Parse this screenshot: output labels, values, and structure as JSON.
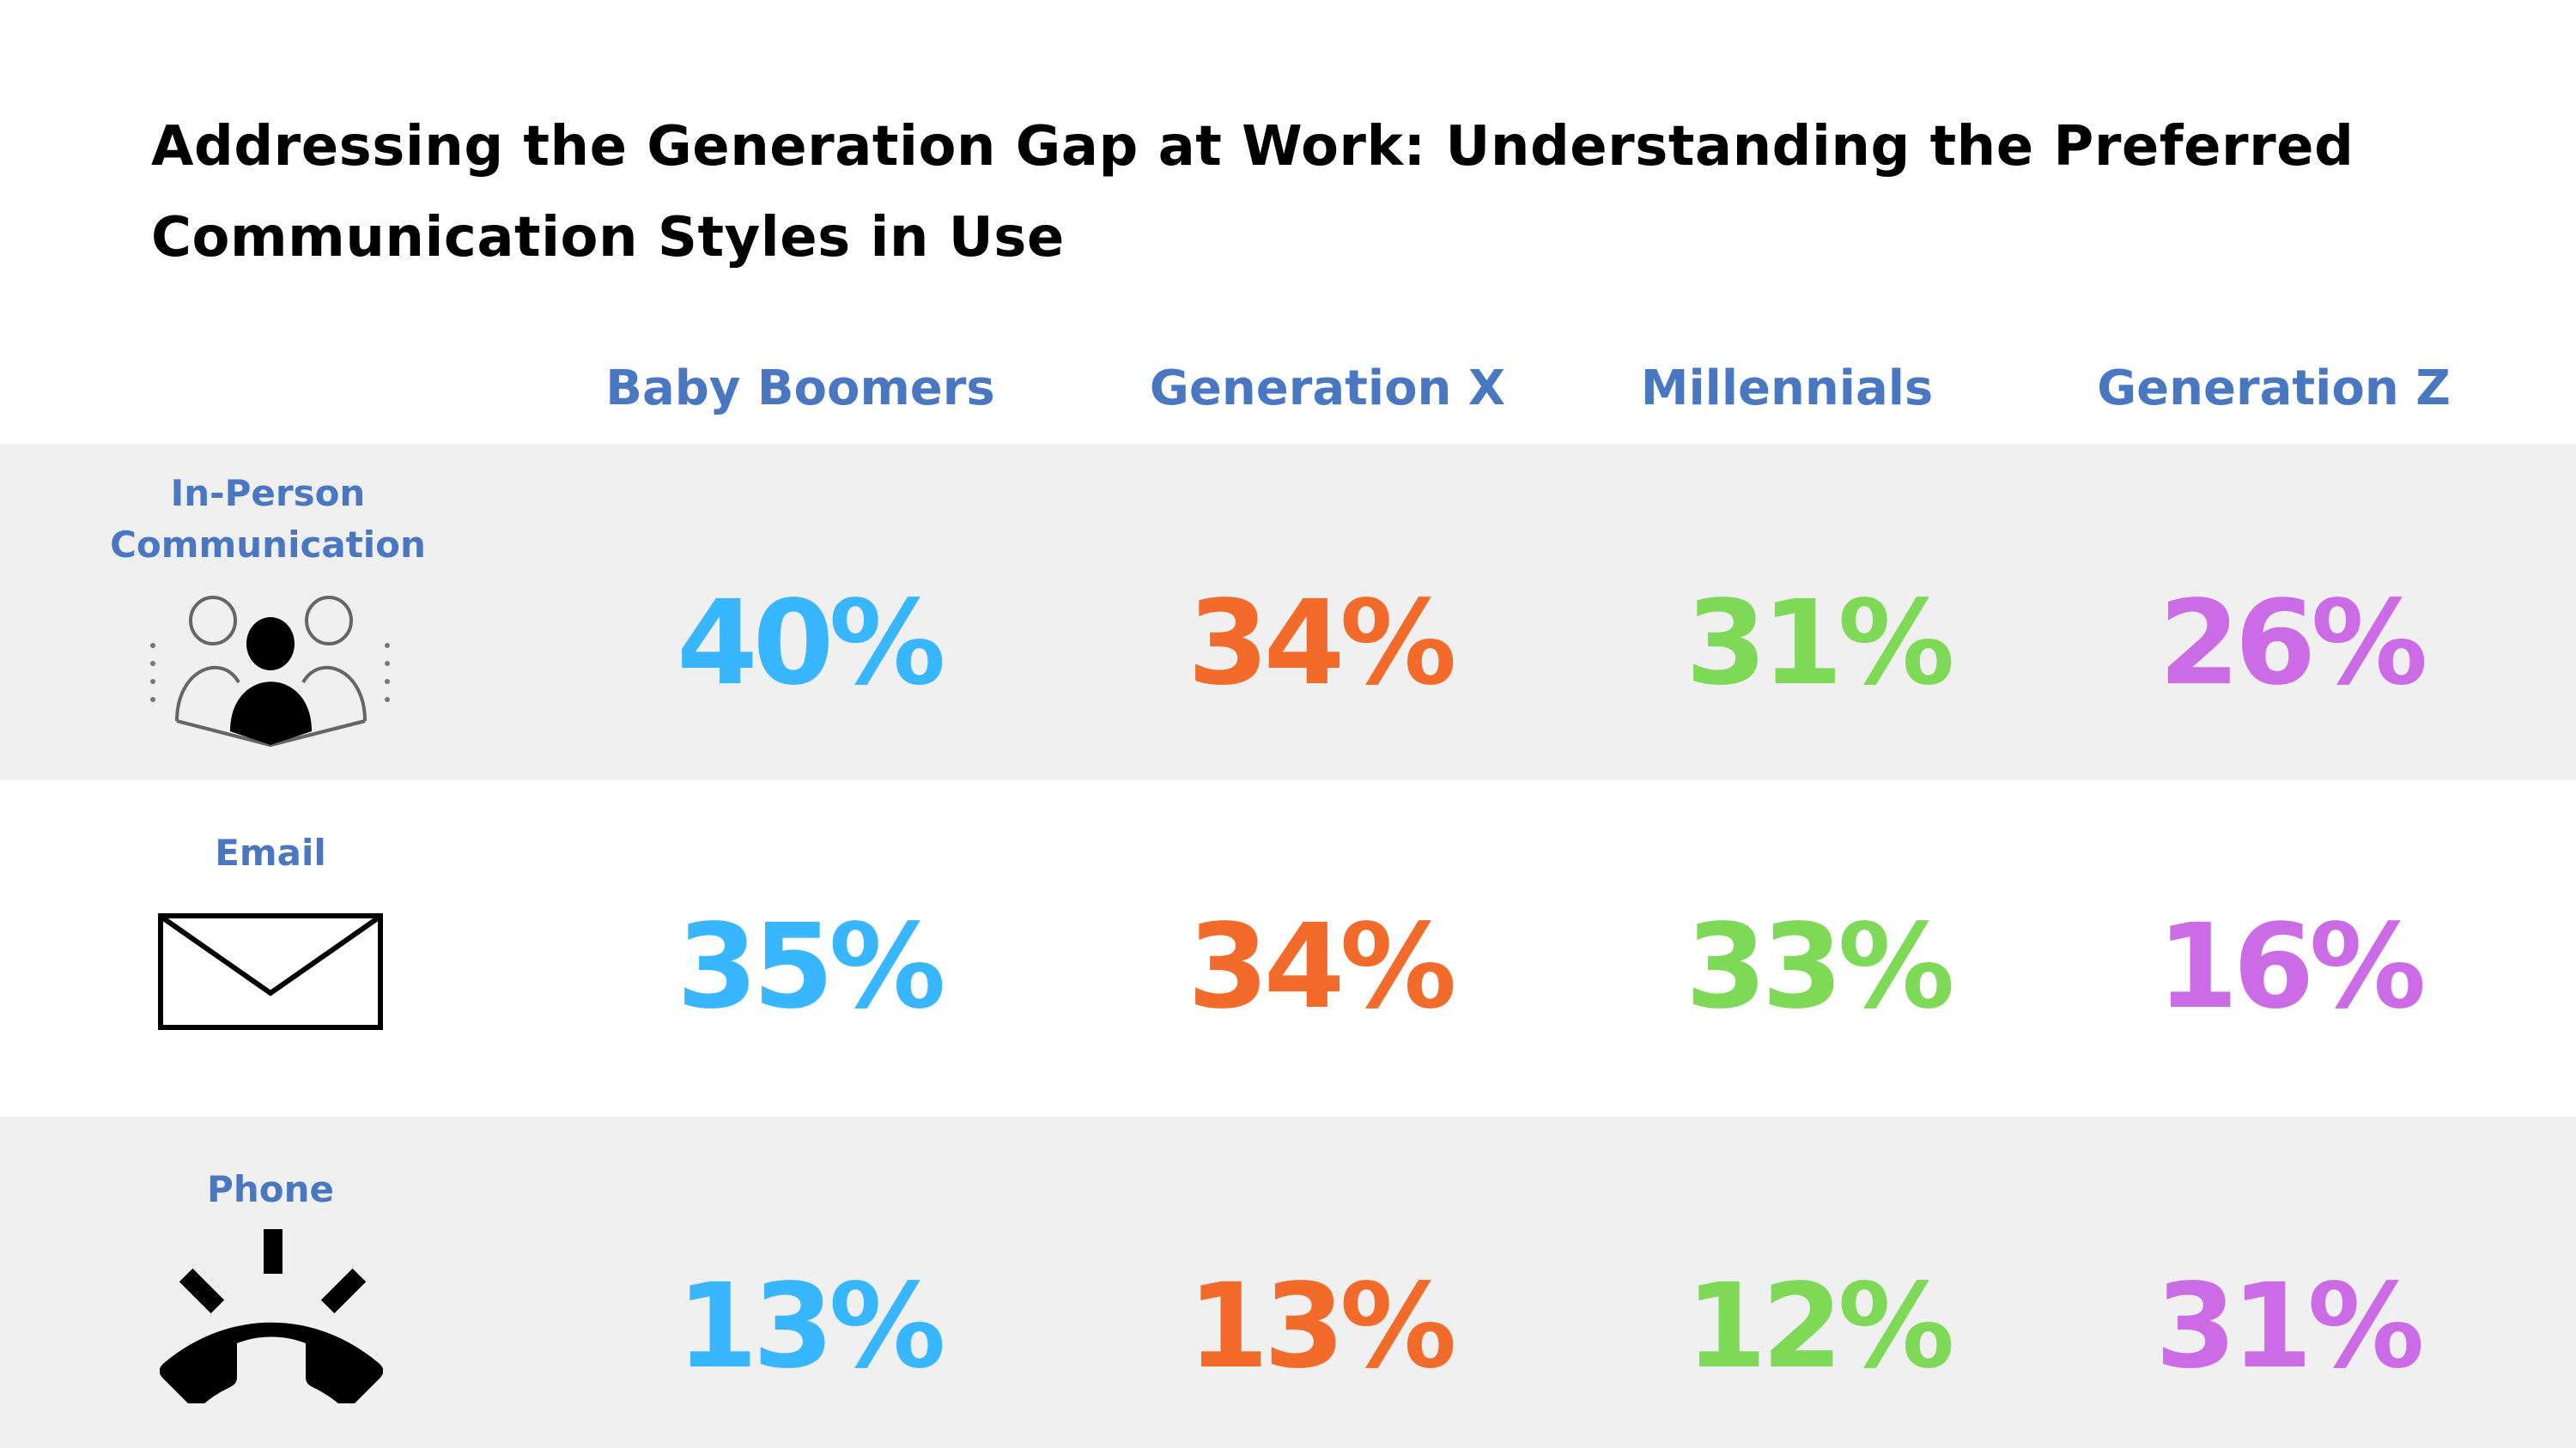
{
  "title": "Addressing the Generation Gap at Work: Understanding the Preferred Communication Styles in Use",
  "columns": [
    "Baby Boomers",
    "Generation X",
    "Millennials",
    "Generation Z"
  ],
  "column_colors": [
    "#38b6ff",
    "#f26b2a",
    "#7ed957",
    "#cb6ce6"
  ],
  "header_color": "#4a77c1",
  "rows": [
    {
      "label": "In-Person Communication",
      "icon": "people-meeting-icon",
      "values": [
        "40%",
        "34%",
        "31%",
        "26%"
      ]
    },
    {
      "label": "Email",
      "icon": "envelope-icon",
      "values": [
        "35%",
        "34%",
        "33%",
        "16%"
      ]
    },
    {
      "label": "Phone",
      "icon": "ringing-phone-icon",
      "values": [
        "13%",
        "13%",
        "12%",
        "31%"
      ]
    }
  ]
}
